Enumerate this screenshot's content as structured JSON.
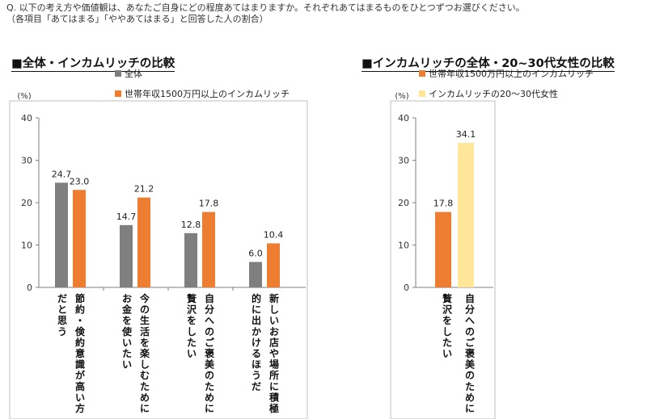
{
  "question": {
    "line1": "Q. 以下の考え方や価値観は、あなたご自身にどの程度あてはまりますか。それぞれあてはまるものをひとつずつお選びください。",
    "line2": "（各項目「あてはまる」「ややあてはまる」と回答した人の割合）"
  },
  "colors": {
    "gray": "#7f7f7f",
    "orange": "#ed7d31",
    "light_yellow": "#ffe699",
    "axis": "#7f7f7f",
    "grid_frame": "#bfbfbf"
  },
  "chart_data": [
    {
      "type": "bar",
      "title": "■全体・インカムリッチの比較",
      "unit": "(%)",
      "ylim": [
        0,
        40
      ],
      "yticks": [
        "0",
        "10",
        "20",
        "30",
        "40"
      ],
      "grid": false,
      "legend_position": "top",
      "categories": [
        [
          "節約・倹約意識が高い方",
          "だと思う"
        ],
        [
          "今の生活を楽しむために",
          "お金を使いたい"
        ],
        [
          "自分へのご褒美のために",
          "贅沢をしたい"
        ],
        [
          "新しいお店や場所に積極",
          "的に出かけるほうだ"
        ]
      ],
      "series": [
        {
          "name": "全体",
          "color": "#7f7f7f",
          "values": [
            24.7,
            14.7,
            12.8,
            6.0
          ],
          "labels": [
            "24.7",
            "14.7",
            "12.8",
            "6.0"
          ]
        },
        {
          "name": "世帯年収1500万円以上のインカムリッチ",
          "color": "#ed7d31",
          "values": [
            23.0,
            21.2,
            17.8,
            10.4
          ],
          "labels": [
            "23.0",
            "21.2",
            "17.8",
            "10.4"
          ]
        }
      ]
    },
    {
      "type": "bar",
      "title": "■インカムリッチの全体・20~30代女性の比較",
      "unit": "(%)",
      "ylim": [
        0,
        40
      ],
      "yticks": [
        "0",
        "10",
        "20",
        "30",
        "40"
      ],
      "grid": false,
      "legend_position": "top",
      "categories": [
        [
          "自分へのご褒美のために",
          "贅沢をしたい"
        ]
      ],
      "series": [
        {
          "name": "世帯年収1500万円以上のインカムリッチ",
          "color": "#ed7d31",
          "values": [
            17.8
          ],
          "labels": [
            "17.8"
          ]
        },
        {
          "name": "インカムリッチの20～30代女性",
          "color": "#ffe699",
          "values": [
            34.1
          ],
          "labels": [
            "34.1"
          ]
        }
      ]
    }
  ]
}
